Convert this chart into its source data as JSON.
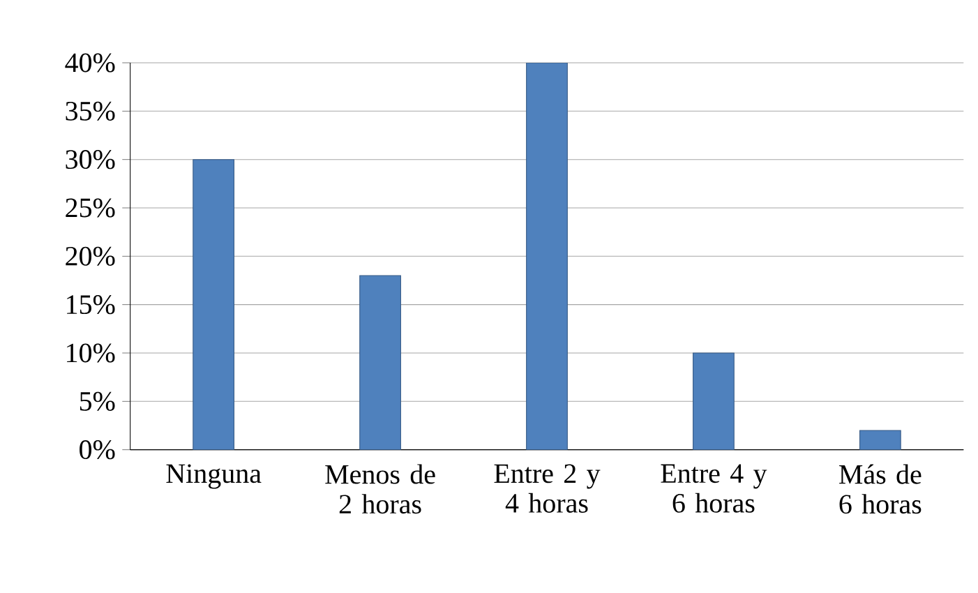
{
  "chart_data": {
    "type": "bar",
    "categories": [
      "Ninguna",
      "Menos de 2 horas",
      "Entre 2 y 4 horas",
      "Entre 4 y 6 horas",
      "Más de 6 horas"
    ],
    "values": [
      30,
      18,
      40,
      10,
      2
    ],
    "color": "#4f81bd",
    "ylim": [
      0,
      40
    ],
    "yticks": [
      {
        "value": 0,
        "label": "0%"
      },
      {
        "value": 5,
        "label": "5%"
      },
      {
        "value": 10,
        "label": "10%"
      },
      {
        "value": 15,
        "label": "15%"
      },
      {
        "value": 20,
        "label": "20%"
      },
      {
        "value": 25,
        "label": "25%"
      },
      {
        "value": 30,
        "label": "30%"
      },
      {
        "value": 35,
        "label": "35%"
      },
      {
        "value": 40,
        "label": "40%"
      }
    ],
    "grid": "y"
  }
}
